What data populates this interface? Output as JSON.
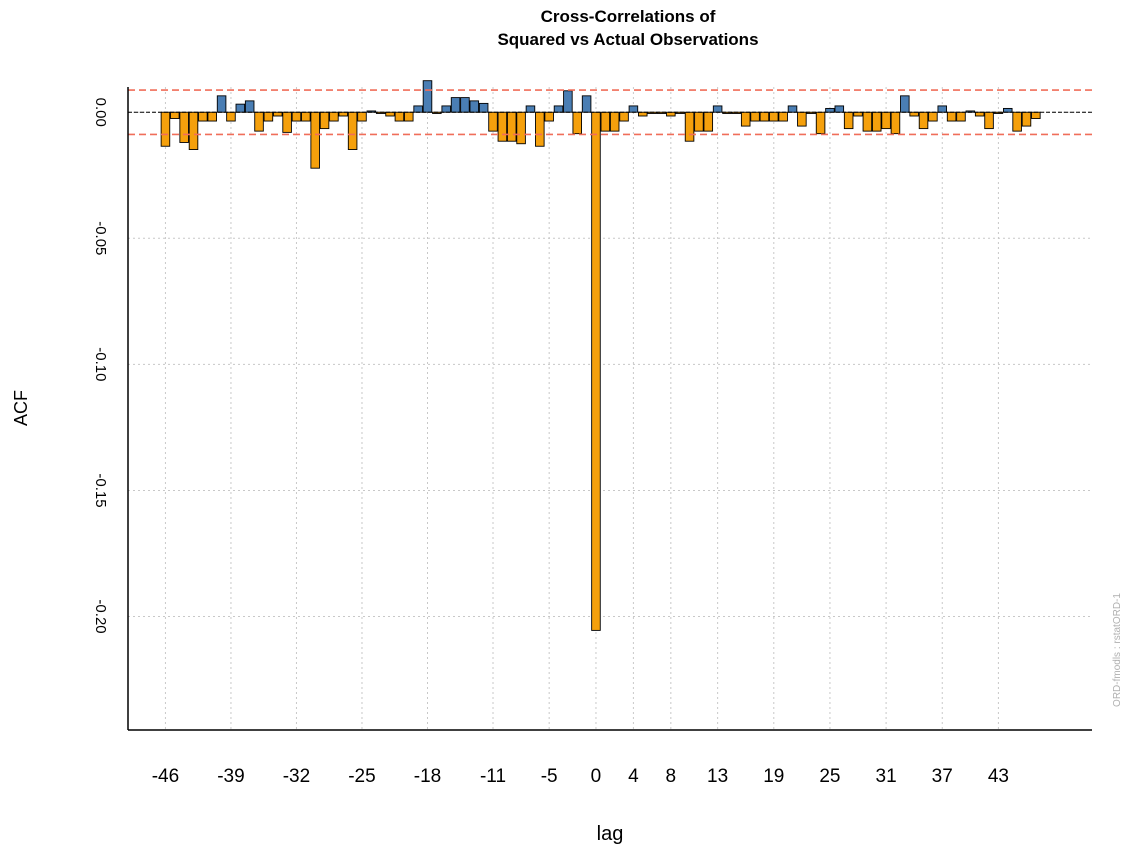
{
  "chart_data": {
    "type": "bar",
    "title": "Cross-Correlations of",
    "subtitle": "Squared vs Actual Observations",
    "xlabel": "lag",
    "ylabel": "ACF",
    "xlim": [
      -50,
      53
    ],
    "ylim": [
      -0.245,
      0.01
    ],
    "x_ticks": [
      -46,
      -39,
      -32,
      -25,
      -18,
      -11,
      -5,
      0,
      4,
      8,
      13,
      19,
      25,
      31,
      37,
      43
    ],
    "y_ticks": [
      0,
      -0.05,
      -0.1,
      -0.15,
      -0.2
    ],
    "y_tick_labels": [
      "0.00",
      "-0.05",
      "-0.10",
      "-0.15",
      "-0.20"
    ],
    "grid": true,
    "confidence_bound": 0.0088,
    "colors": {
      "positive": "#4a7eb4",
      "negative": "#f5a00c",
      "bound_line": "#f06e5a",
      "zero_line": "#000000",
      "grid": "#c8c8c8"
    },
    "lags": [
      -46,
      -45,
      -44,
      -43,
      -42,
      -41,
      -40,
      -39,
      -38,
      -37,
      -36,
      -35,
      -34,
      -33,
      -32,
      -31,
      -30,
      -29,
      -28,
      -27,
      -26,
      -25,
      -24,
      -23,
      -22,
      -21,
      -20,
      -19,
      -18,
      -17,
      -16,
      -15,
      -14,
      -13,
      -12,
      -11,
      -10,
      -9,
      -8,
      -7,
      -6,
      -5,
      -4,
      -3,
      -2,
      -1,
      0,
      1,
      2,
      3,
      4,
      5,
      6,
      7,
      8,
      9,
      10,
      11,
      12,
      13,
      14,
      15,
      16,
      17,
      18,
      19,
      20,
      21,
      22,
      23,
      24,
      25,
      26,
      27,
      28,
      29,
      30,
      31,
      32,
      33,
      34,
      35,
      36,
      37,
      38,
      39,
      40,
      41,
      42,
      43,
      44,
      45,
      46,
      47
    ],
    "values": [
      -0.0135,
      -0.0025,
      -0.012,
      -0.0148,
      -0.0035,
      -0.0035,
      0.0065,
      -0.0035,
      0.0032,
      0.0045,
      -0.0075,
      -0.0035,
      -0.0015,
      -0.008,
      -0.0035,
      -0.0035,
      -0.0222,
      -0.0065,
      -0.0035,
      -0.0015,
      -0.0148,
      -0.0035,
      0.0005,
      -0.0005,
      -0.0015,
      -0.0035,
      -0.0035,
      0.0025,
      0.0125,
      -0.0005,
      0.0025,
      0.0058,
      0.0058,
      0.0045,
      0.0035,
      -0.0075,
      -0.0115,
      -0.0115,
      -0.0125,
      0.0025,
      -0.0135,
      -0.0035,
      0.0025,
      0.0085,
      -0.0085,
      0.0065,
      -0.2055,
      -0.0075,
      -0.0075,
      -0.0035,
      0.0025,
      -0.0015,
      -0.0005,
      -0.0005,
      -0.0015,
      -0.0005,
      -0.0115,
      -0.0075,
      -0.0075,
      0.0025,
      -0.0005,
      -0.0005,
      -0.0055,
      -0.0035,
      -0.0035,
      -0.0035,
      -0.0035,
      0.0025,
      -0.0055,
      -0.0005,
      -0.0085,
      0.0015,
      0.0025,
      -0.0065,
      -0.0015,
      -0.0075,
      -0.0075,
      -0.0065,
      -0.0085,
      0.0065,
      -0.0015,
      -0.0065,
      -0.0035,
      0.0025,
      -0.0035,
      -0.0035,
      0.0005,
      -0.0015,
      -0.0065,
      -0.0005,
      0.0015,
      -0.0075,
      -0.0055,
      -0.0025
    ]
  },
  "watermark": "ORD-fmodls : rstatORD-1"
}
